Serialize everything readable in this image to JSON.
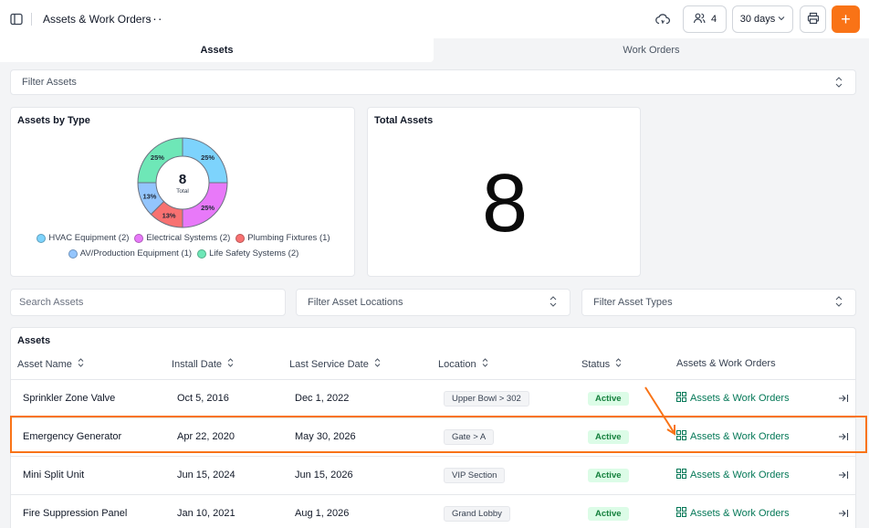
{
  "header": {
    "title": "Assets & Work Orders",
    "more": "···",
    "users_count": "4",
    "date_range": "30 days",
    "add_label": "+"
  },
  "tabs": [
    {
      "label": "Assets",
      "active": true
    },
    {
      "label": "Work Orders",
      "active": false
    }
  ],
  "filters": {
    "assets_placeholder": "Filter Assets",
    "search_placeholder": "Search Assets",
    "locations_placeholder": "Filter Asset Locations",
    "types_placeholder": "Filter Asset Types"
  },
  "assets_by_type": {
    "title": "Assets by Type",
    "center_value": "8",
    "center_label": "Total"
  },
  "chart_data": {
    "type": "pie",
    "title": "Assets by Type",
    "categories": [
      "HVAC Equipment",
      "Electrical Systems",
      "Plumbing Fixtures",
      "AV/Production Equipment",
      "Life Safety Systems"
    ],
    "values": [
      2,
      2,
      1,
      1,
      2
    ],
    "percent_labels": [
      "25%",
      "25%",
      "13%",
      "13%",
      "25%"
    ],
    "legend_labels": [
      "HVAC Equipment (2)",
      "Electrical Systems (2)",
      "Plumbing Fixtures (1)",
      "AV/Production Equipment (1)",
      "Life Safety Systems (2)"
    ],
    "colors": [
      "#7dd3fc",
      "#e879f9",
      "#f87171",
      "#93c5fd",
      "#6ee7b7"
    ],
    "legend_placement": "bottom"
  },
  "total_assets": {
    "title": "Total Assets",
    "value": "8"
  },
  "table": {
    "title": "Assets",
    "columns": [
      "Asset Name",
      "Install Date",
      "Last Service Date",
      "Location",
      "Status",
      "Assets & Work Orders"
    ],
    "link_label": "Assets & Work Orders",
    "rows": [
      {
        "name": "Sprinkler Zone Valve",
        "install": "Oct 5, 2016",
        "service": "Dec 1, 2022",
        "location": "Upper Bowl > 302",
        "status": "Active"
      },
      {
        "name": "Emergency Generator",
        "install": "Apr 22, 2020",
        "service": "May 30, 2026",
        "location": "Gate > A",
        "status": "Active"
      },
      {
        "name": "Mini Split Unit",
        "install": "Jun 15, 2024",
        "service": "Jun 15, 2026",
        "location": "VIP Section",
        "status": "Active"
      },
      {
        "name": "Fire Suppression Panel",
        "install": "Jan 10, 2021",
        "service": "Aug 1, 2026",
        "location": "Grand Lobby",
        "status": "Active"
      }
    ]
  },
  "colors": {
    "accent": "#f97316",
    "active_bg": "#dcfce7",
    "active_text": "#15803d",
    "link": "#047857"
  }
}
